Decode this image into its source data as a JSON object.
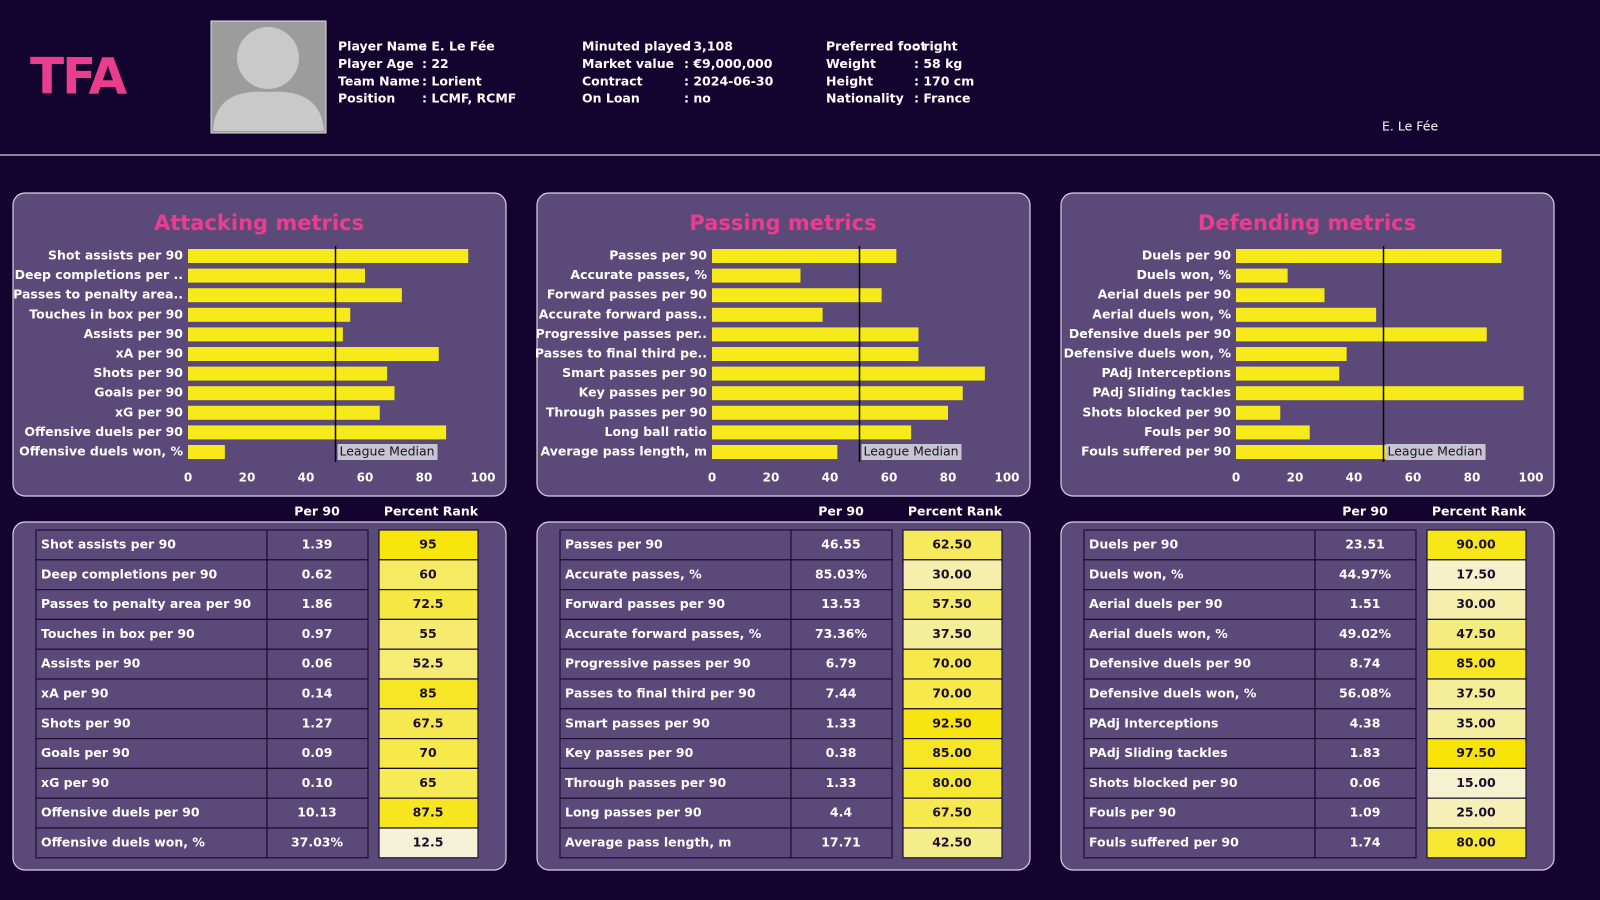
{
  "header": {
    "logo": "TFA",
    "player_tag": "E. Le Fée",
    "columns": [
      [
        {
          "label": "Player Name",
          "value": ": E. Le Fée"
        },
        {
          "label": "Player Age",
          "value": ": 22"
        },
        {
          "label": "Team Name",
          "value": ": Lorient"
        },
        {
          "label": "Position",
          "value": ": LCMF, RCMF"
        }
      ],
      [
        {
          "label": "Minuted played",
          "value": ": 3,108"
        },
        {
          "label": "Market value",
          "value": ": €9,000,000"
        },
        {
          "label": "Contract",
          "value": ": 2024-06-30"
        },
        {
          "label": "On Loan",
          "value": ": no"
        }
      ],
      [
        {
          "label": "Preferred foot",
          "value": ": right"
        },
        {
          "label": "Weight",
          "value": ": 58 kg"
        },
        {
          "label": "Height",
          "value": ": 170 cm"
        },
        {
          "label": "Nationality",
          "value": ": France"
        }
      ]
    ]
  },
  "chart_data": [
    {
      "type": "bar",
      "title": "Attacking metrics",
      "categories": [
        "Shot assists per 90",
        "Deep completions per ..",
        "Passes to penalty area..",
        "Touches in box per 90",
        "Assists per 90",
        "xA per 90",
        "Shots per 90",
        "Goals per 90",
        "xG per 90",
        "Offensive duels per 90",
        "Offensive duels won, %"
      ],
      "values": [
        95,
        60,
        72.5,
        55,
        52.5,
        85,
        67.5,
        70,
        65,
        87.5,
        12.5
      ],
      "color": "#f7ea1a",
      "xlim": [
        0,
        100
      ],
      "xticks": [
        0,
        20,
        40,
        60,
        80,
        100
      ],
      "median": 50,
      "median_label": "League Median"
    },
    {
      "type": "bar",
      "title": "Passing metrics",
      "categories": [
        "Passes per 90",
        "Accurate passes, %",
        "Forward passes per 90",
        "Accurate forward pass..",
        "Progressive passes per..",
        "Passes to final third pe..",
        "Smart passes per 90",
        "Key passes per 90",
        "Through passes per 90",
        "Long ball ratio",
        "Average pass length, m"
      ],
      "values": [
        62.5,
        30,
        57.5,
        37.5,
        70,
        70,
        92.5,
        85,
        80,
        67.5,
        42.5
      ],
      "color": "#f7ea1a",
      "xlim": [
        0,
        100
      ],
      "xticks": [
        0,
        20,
        40,
        60,
        80,
        100
      ],
      "median": 50,
      "median_label": "League Median"
    },
    {
      "type": "bar",
      "title": "Defending metrics",
      "categories": [
        "Duels per 90",
        "Duels won, %",
        "Aerial duels per 90",
        "Aerial duels won, %",
        "Defensive duels per 90",
        "Defensive duels won, %",
        "PAdj Interceptions",
        "PAdj Sliding tackles",
        "Shots blocked per 90",
        "Fouls per 90",
        "Fouls suffered per 90"
      ],
      "values": [
        90,
        17.5,
        30,
        47.5,
        85,
        37.5,
        35,
        97.5,
        15,
        25,
        80
      ],
      "color": "#f7ea1a",
      "xlim": [
        0,
        100
      ],
      "xticks": [
        0,
        20,
        40,
        60,
        80,
        100
      ],
      "median": 50,
      "median_label": "League Median"
    }
  ],
  "tables": [
    {
      "columns": [
        "Per 90",
        "Percent Rank"
      ],
      "rows": [
        [
          "Shot assists per 90",
          "1.39",
          "95"
        ],
        [
          "Deep completions per 90",
          "0.62",
          "60"
        ],
        [
          "Passes to penalty area per 90",
          "1.86",
          "72.5"
        ],
        [
          "Touches in box per 90",
          "0.97",
          "55"
        ],
        [
          "Assists per 90",
          "0.06",
          "52.5"
        ],
        [
          "xA per 90",
          "0.14",
          "85"
        ],
        [
          "Shots per 90",
          "1.27",
          "67.5"
        ],
        [
          "Goals per 90",
          "0.09",
          "70"
        ],
        [
          "xG per 90",
          "0.10",
          "65"
        ],
        [
          "Offensive duels per 90",
          "10.13",
          "87.5"
        ],
        [
          "Offensive duels won, %",
          "37.03%",
          "12.5"
        ]
      ]
    },
    {
      "columns": [
        "Per 90",
        "Percent Rank"
      ],
      "rows": [
        [
          "Passes per 90",
          "46.55",
          "62.50"
        ],
        [
          "Accurate passes, %",
          "85.03%",
          "30.00"
        ],
        [
          "Forward passes per 90",
          "13.53",
          "57.50"
        ],
        [
          "Accurate forward passes, %",
          "73.36%",
          "37.50"
        ],
        [
          "Progressive passes per 90",
          "6.79",
          "70.00"
        ],
        [
          "Passes to final third per 90",
          "7.44",
          "70.00"
        ],
        [
          "Smart passes per 90",
          "1.33",
          "92.50"
        ],
        [
          "Key passes per 90",
          "0.38",
          "85.00"
        ],
        [
          "Through passes per 90",
          "1.33",
          "80.00"
        ],
        [
          "Long passes per 90",
          "4.4",
          "67.50"
        ],
        [
          "Average pass length, m",
          "17.71",
          "42.50"
        ]
      ]
    },
    {
      "columns": [
        "Per 90",
        "Percent Rank"
      ],
      "rows": [
        [
          "Duels per 90",
          "23.51",
          "90.00"
        ],
        [
          "Duels won, %",
          "44.97%",
          "17.50"
        ],
        [
          "Aerial duels per 90",
          "1.51",
          "30.00"
        ],
        [
          "Aerial duels won, %",
          "49.02%",
          "47.50"
        ],
        [
          "Defensive duels per 90",
          "8.74",
          "85.00"
        ],
        [
          "Defensive duels won, %",
          "56.08%",
          "37.50"
        ],
        [
          "PAdj Interceptions",
          "4.38",
          "35.00"
        ],
        [
          "PAdj Sliding tackles",
          "1.83",
          "97.50"
        ],
        [
          "Shots blocked per 90",
          "0.06",
          "15.00"
        ],
        [
          "Fouls per 90",
          "1.09",
          "25.00"
        ],
        [
          "Fouls suffered per 90",
          "1.74",
          "80.00"
        ]
      ]
    }
  ]
}
